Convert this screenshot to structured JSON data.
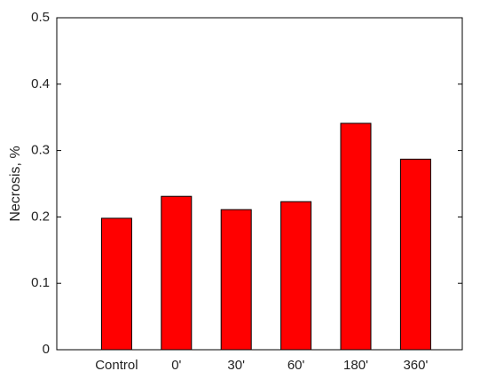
{
  "chart_data": {
    "type": "bar",
    "y_label": "Necrosis, %",
    "categories": [
      "Control",
      "0'",
      "30'",
      "60'",
      "180'",
      "360'"
    ],
    "values": [
      0.198,
      0.231,
      0.211,
      0.223,
      0.341,
      0.287
    ],
    "color": "#ff0000",
    "ylim": [
      0,
      0.5
    ],
    "yticks": [
      0,
      0.1,
      0.2,
      0.3,
      0.4,
      0.5
    ],
    "grid": false
  }
}
